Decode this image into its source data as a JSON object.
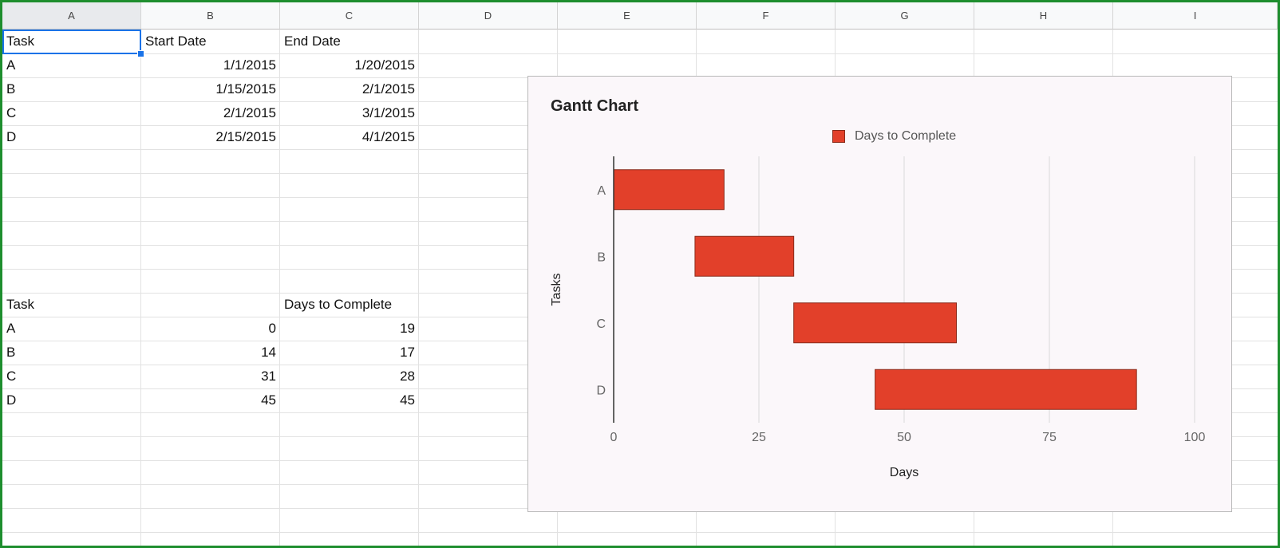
{
  "columns": [
    "A",
    "B",
    "C",
    "D",
    "E",
    "F",
    "G",
    "H",
    "I"
  ],
  "table1": {
    "headers": [
      "Task",
      "Start Date",
      "End Date"
    ],
    "rows": [
      [
        "A",
        "1/1/2015",
        "1/20/2015"
      ],
      [
        "B",
        "1/15/2015",
        "2/1/2015"
      ],
      [
        "C",
        "2/1/2015",
        "3/1/2015"
      ],
      [
        "D",
        "2/15/2015",
        "4/1/2015"
      ]
    ]
  },
  "table2": {
    "headers": [
      "Task",
      "",
      "Days to Complete"
    ],
    "rows": [
      [
        "A",
        "0",
        "19"
      ],
      [
        "B",
        "14",
        "17"
      ],
      [
        "C",
        "31",
        "28"
      ],
      [
        "D",
        "45",
        "45"
      ]
    ]
  },
  "chart_data": {
    "type": "bar",
    "orientation": "horizontal",
    "stacked": true,
    "title": "Gantt Chart",
    "categories": [
      "A",
      "B",
      "C",
      "D"
    ],
    "offsets": [
      0,
      14,
      31,
      45
    ],
    "series": [
      {
        "name": "Days to Complete",
        "values": [
          19,
          17,
          28,
          45
        ],
        "color": "#e2402a"
      }
    ],
    "xlabel": "Days",
    "ylabel": "Tasks",
    "xlim": [
      0,
      100
    ],
    "xticks": [
      0,
      25,
      50,
      75,
      100
    ],
    "grid": true,
    "legend_position": "top"
  },
  "colors": {
    "bar": "#e2402a",
    "bar_stroke": "#8a2a1a",
    "selection": "#1a73e8",
    "frame": "#1e8e2e"
  }
}
